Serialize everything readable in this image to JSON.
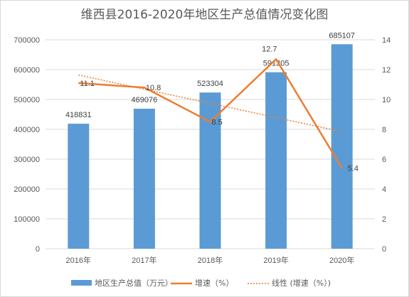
{
  "chart_data": {
    "type": "bar",
    "title": "维西县2016-2020年地区生产总值情况变化图",
    "categories": [
      "2016年",
      "2017年",
      "2018年",
      "2019年",
      "2020年"
    ],
    "series": [
      {
        "name": "地区生产总值（万元）",
        "type": "bar",
        "axis": "left",
        "color": "#5b9bd5",
        "values": [
          418831,
          469076,
          523304,
          591305,
          685107
        ],
        "labels": [
          "418831",
          "469076",
          "523304",
          "591305",
          "685107"
        ]
      },
      {
        "name": "增速（%）",
        "type": "line",
        "axis": "right",
        "color": "#ed7d31",
        "values": [
          11.1,
          10.8,
          8.5,
          12.7,
          5.4
        ],
        "labels": [
          "11.1",
          "10.8",
          "8.5",
          "12.7",
          "5.4"
        ]
      },
      {
        "name": "线性 (增速（%）)",
        "type": "trendline",
        "axis": "right",
        "color": "#ed7d31",
        "values": [
          11.64,
          10.69,
          9.74,
          8.79,
          7.84
        ]
      }
    ],
    "y_left": {
      "min": 0,
      "max": 700000,
      "step": 100000,
      "ticks": [
        "0",
        "100000",
        "200000",
        "300000",
        "400000",
        "500000",
        "600000",
        "700000"
      ]
    },
    "y_right": {
      "min": 0,
      "max": 14,
      "step": 2,
      "ticks": [
        "0",
        "2",
        "4",
        "6",
        "8",
        "10",
        "12",
        "14"
      ]
    },
    "grid": true,
    "legend_position": "bottom"
  }
}
